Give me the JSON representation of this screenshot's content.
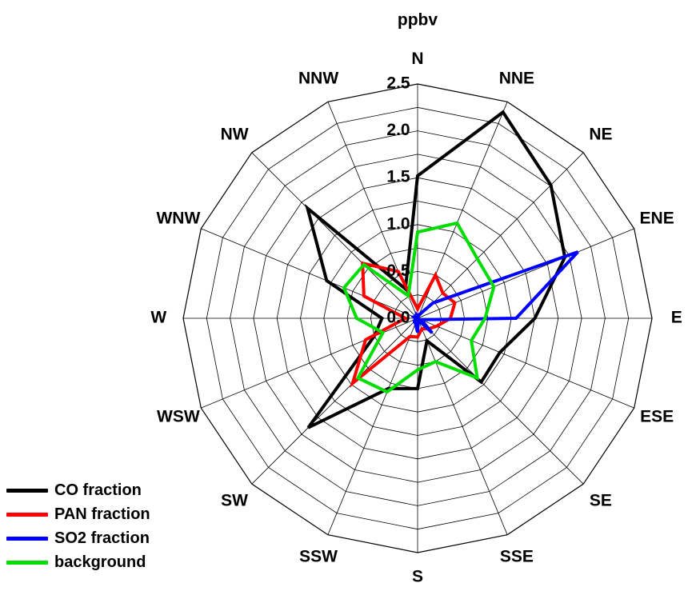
{
  "chart_data": {
    "type": "radar",
    "unit_label": "ppbv",
    "directions": [
      "N",
      "NNE",
      "NE",
      "ENE",
      "E",
      "ESE",
      "SE",
      "SSE",
      "S",
      "SSW",
      "SW",
      "WSW",
      "W",
      "WNW",
      "NW",
      "NNW"
    ],
    "rlim": [
      0,
      2.5
    ],
    "r_ticks": [
      0.0,
      0.5,
      1.0,
      1.5,
      2.0,
      2.5
    ],
    "r_tick_labels": [
      "0.0",
      "0.5",
      "1.0",
      "1.5",
      "2.0",
      "2.5"
    ],
    "grid": true,
    "legend_position": "bottom-left",
    "series": [
      {
        "name": "CO fraction",
        "color": "#000000",
        "values": [
          1.52,
          2.38,
          2.01,
          1.7,
          1.25,
          0.95,
          0.96,
          0.26,
          0.75,
          0.81,
          1.65,
          0.5,
          0.38,
          1.05,
          1.66,
          0.34
        ]
      },
      {
        "name": "PAN fraction",
        "color": "#ff0000",
        "values": [
          0.1,
          0.5,
          0.38,
          0.43,
          0.35,
          0.22,
          0.16,
          0.12,
          0.2,
          0.21,
          0.98,
          0.6,
          0.13,
          0.62,
          0.83,
          0.54
        ]
      },
      {
        "name": "SO2 fraction",
        "color": "#0000ff",
        "values": [
          0.01,
          0.04,
          0.23,
          1.85,
          1.05,
          0.04,
          0.22,
          0.02,
          0.15,
          0.06,
          0.05,
          0.03,
          0.01,
          0.04,
          0.03,
          0.04
        ]
      },
      {
        "name": "background",
        "color": "#00dd00",
        "values": [
          0.92,
          1.1,
          0.9,
          0.88,
          0.72,
          0.62,
          0.9,
          0.5,
          0.55,
          0.85,
          0.9,
          0.4,
          0.65,
          0.85,
          0.81,
          0.26
        ]
      }
    ]
  }
}
